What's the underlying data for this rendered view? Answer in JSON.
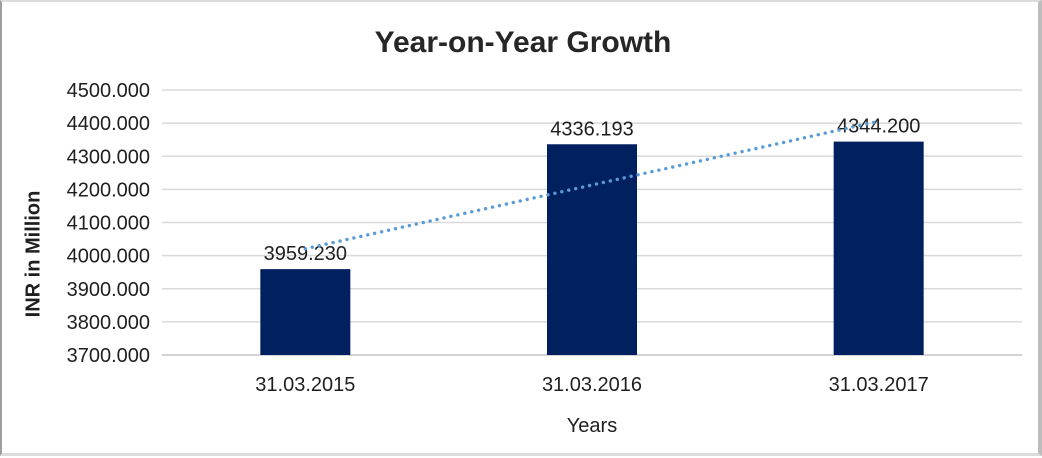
{
  "chart_data": {
    "type": "bar",
    "title": "Year-on-Year Growth",
    "xlabel": "Years",
    "ylabel": "INR in Million",
    "categories": [
      "31.03.2015",
      "31.03.2016",
      "31.03.2017"
    ],
    "values": [
      3959.23,
      4336.193,
      4344.2
    ],
    "data_labels": [
      "3959.230",
      "4336.193",
      "4344.200"
    ],
    "ylim": [
      3700,
      4500
    ],
    "ytick_step": 100,
    "ytick_labels": [
      "3700.000",
      "3800.000",
      "3900.000",
      "4000.000",
      "4100.000",
      "4200.000",
      "4300.000",
      "4400.000",
      "4500.000"
    ],
    "grid": true,
    "legend_position": "none",
    "bar_color": "#002060",
    "gridline_color": "#d9d9d9",
    "axis_line_color": "#cccccc",
    "text_color": "#1f1f1f",
    "trendline": {
      "type": "linear",
      "style": "dotted",
      "color": "#5B9BD5"
    }
  }
}
